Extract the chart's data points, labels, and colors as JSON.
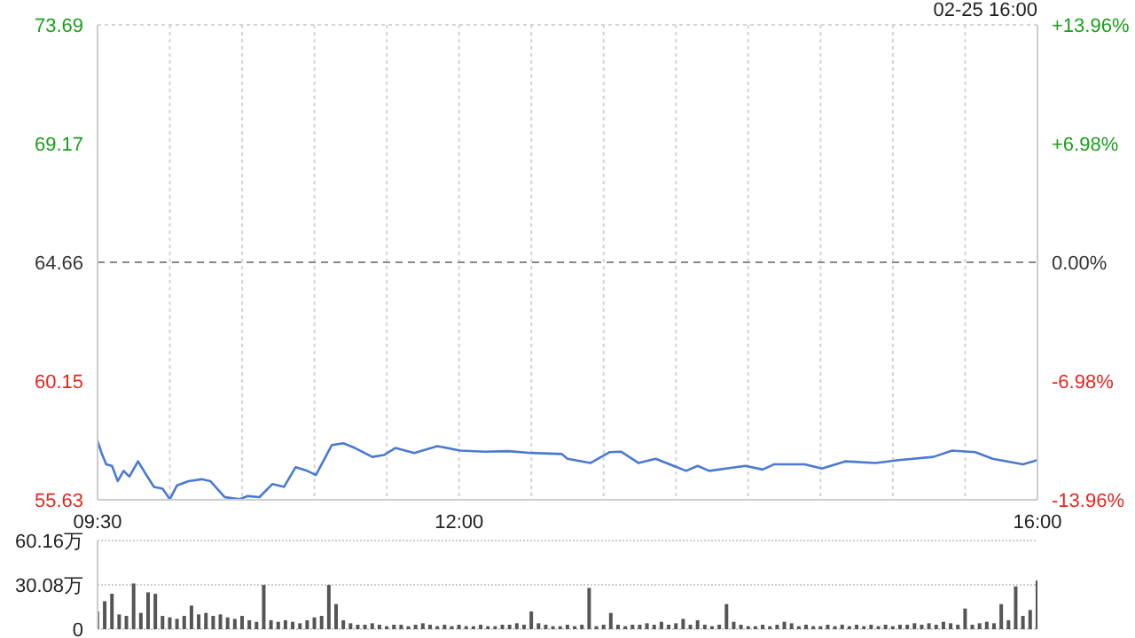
{
  "chart_data": [
    {
      "type": "line",
      "annotations": [
        "02-25 16:00"
      ],
      "marker": "none",
      "line_style": "solid",
      "grid": true,
      "x": [
        9.5,
        9.53,
        9.56,
        9.6,
        9.64,
        9.68,
        9.72,
        9.78,
        9.83,
        9.89,
        9.95,
        10.0,
        10.05,
        10.13,
        10.22,
        10.28,
        10.38,
        10.48,
        10.54,
        10.62,
        10.71,
        10.79,
        10.87,
        10.95,
        11.01,
        11.12,
        11.2,
        11.28,
        11.4,
        11.48,
        11.56,
        11.69,
        11.85,
        12.01,
        12.18,
        12.34,
        12.5,
        12.71,
        12.75,
        12.91,
        13.04,
        13.12,
        13.24,
        13.36,
        13.57,
        13.65,
        13.73,
        13.98,
        14.1,
        14.18,
        14.39,
        14.51,
        14.67,
        14.88,
        15.04,
        15.28,
        15.41,
        15.57,
        15.69,
        15.9,
        16.0
      ],
      "series": [
        {
          "color": "#4a7ad0",
          "values": [
            57.87,
            57.37,
            56.98,
            56.92,
            56.34,
            56.73,
            56.51,
            57.09,
            56.64,
            56.12,
            56.05,
            55.65,
            56.18,
            56.34,
            56.41,
            56.34,
            55.73,
            55.65,
            55.77,
            55.73,
            56.23,
            56.12,
            56.87,
            56.73,
            56.57,
            57.71,
            57.78,
            57.6,
            57.26,
            57.33,
            57.6,
            57.41,
            57.67,
            57.5,
            57.46,
            57.48,
            57.41,
            57.37,
            57.19,
            57.03,
            57.44,
            57.46,
            57.03,
            57.19,
            56.73,
            56.92,
            56.73,
            56.92,
            56.78,
            56.98,
            56.98,
            56.82,
            57.09,
            57.03,
            57.14,
            57.26,
            57.5,
            57.44,
            57.19,
            56.98,
            57.14
          ]
        }
      ],
      "xlim": [
        9.5,
        16
      ],
      "xticks": [
        {
          "value": 9.5,
          "label": "09:30"
        },
        {
          "value": 10,
          "label": null
        },
        {
          "value": 10.5,
          "label": null
        },
        {
          "value": 11,
          "label": null
        },
        {
          "value": 11.5,
          "label": null
        },
        {
          "value": 12,
          "label": "12:00"
        },
        {
          "value": 12.5,
          "label": null
        },
        {
          "value": 13,
          "label": null
        },
        {
          "value": 13.5,
          "label": null
        },
        {
          "value": 14,
          "label": null
        },
        {
          "value": 14.5,
          "label": null
        },
        {
          "value": 15,
          "label": null
        },
        {
          "value": 15.5,
          "label": null
        },
        {
          "value": 16,
          "label": "16:00"
        }
      ],
      "ylim": [
        55.63,
        73.69
      ],
      "yticks": [
        55.63,
        60.15,
        64.66,
        69.17,
        73.69
      ],
      "y2lim": [
        -13.96,
        13.96
      ],
      "y2ticks": [
        {
          "value": -13.96,
          "label": "-13.96%"
        },
        {
          "value": -6.98,
          "label": "-6.98%"
        },
        {
          "value": 0,
          "label": "0.00%"
        },
        {
          "value": 6.98,
          "label": "+6.98%"
        },
        {
          "value": 13.96,
          "label": "+13.96%"
        }
      ],
      "ref_lines": [
        {
          "axis": "y",
          "value": 64.66,
          "color": "#888888",
          "line_style": "dashed"
        }
      ]
    },
    {
      "type": "bar",
      "grid": "y",
      "tick_labels": "y",
      "color": "#555555",
      "x": [
        9.5,
        9.55,
        9.6,
        9.65,
        9.7,
        9.75,
        9.8,
        9.85,
        9.9,
        9.95,
        10.0,
        10.05,
        10.1,
        10.15,
        10.2,
        10.25,
        10.3,
        10.35,
        10.4,
        10.45,
        10.5,
        10.55,
        10.6,
        10.65,
        10.7,
        10.75,
        10.8,
        10.85,
        10.9,
        10.95,
        11.0,
        11.05,
        11.1,
        11.15,
        11.2,
        11.25,
        11.3,
        11.35,
        11.4,
        11.45,
        11.5,
        11.55,
        11.6,
        11.65,
        11.7,
        11.75,
        11.8,
        11.85,
        11.9,
        11.95,
        12.0,
        12.05,
        12.1,
        12.15,
        12.2,
        12.25,
        12.3,
        12.35,
        12.4,
        12.45,
        12.5,
        12.55,
        12.6,
        12.65,
        12.7,
        12.75,
        12.8,
        12.85,
        12.9,
        12.95,
        13.0,
        13.05,
        13.1,
        13.15,
        13.2,
        13.25,
        13.3,
        13.35,
        13.4,
        13.45,
        13.5,
        13.55,
        13.6,
        13.65,
        13.7,
        13.75,
        13.8,
        13.85,
        13.9,
        13.95,
        14.0,
        14.05,
        14.1,
        14.15,
        14.2,
        14.25,
        14.3,
        14.35,
        14.4,
        14.45,
        14.5,
        14.55,
        14.6,
        14.65,
        14.7,
        14.75,
        14.8,
        14.85,
        14.9,
        14.95,
        15.0,
        15.05,
        15.1,
        15.15,
        15.2,
        15.25,
        15.3,
        15.35,
        15.4,
        15.45,
        15.5,
        15.55,
        15.6,
        15.65,
        15.7,
        15.75,
        15.8,
        15.85,
        15.9,
        15.95,
        16.0
      ],
      "values": [
        12,
        19,
        24,
        10,
        9,
        31,
        11,
        25,
        24,
        9,
        8,
        7,
        9,
        16,
        10,
        11,
        9,
        10,
        8,
        7,
        9,
        6,
        5,
        30,
        6,
        5,
        6,
        5,
        4,
        6,
        8,
        9,
        30,
        17,
        6,
        4,
        3,
        3,
        4,
        3,
        2,
        3,
        3,
        2,
        3,
        4,
        3,
        2,
        3,
        2,
        3,
        2,
        2,
        3,
        2,
        2,
        3,
        3,
        4,
        3,
        12,
        4,
        3,
        2,
        2,
        3,
        2,
        3,
        28,
        2,
        3,
        11,
        3,
        2,
        3,
        3,
        4,
        3,
        5,
        3,
        4,
        7,
        3,
        6,
        3,
        2,
        3,
        17,
        5,
        3,
        2,
        2,
        3,
        2,
        3,
        5,
        4,
        2,
        3,
        2,
        2,
        3,
        2,
        3,
        2,
        3,
        2,
        3,
        2,
        3,
        2,
        3,
        3,
        4,
        3,
        4,
        3,
        5,
        4,
        3,
        14,
        3,
        4,
        5,
        4,
        17,
        6,
        29,
        9,
        13,
        33
      ],
      "xlim": [
        9.5,
        16
      ],
      "ylim": [
        0,
        60.16
      ],
      "yticks": [
        0,
        {
          "value": 30.08,
          "label": "30.08万"
        },
        {
          "value": 60.16,
          "label": "60.16万"
        }
      ]
    }
  ]
}
